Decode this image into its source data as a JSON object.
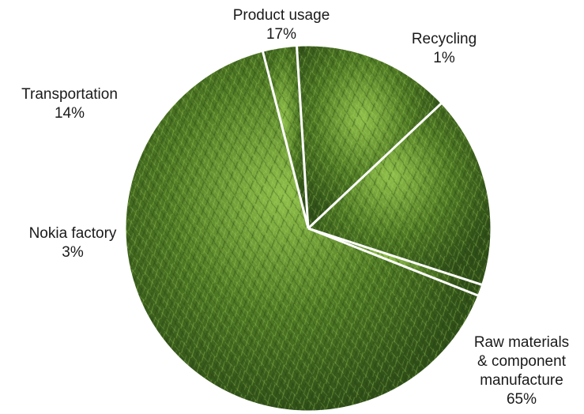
{
  "chart_data": {
    "type": "pie",
    "start_angle_deg": 108,
    "direction": "clockwise",
    "colors": {
      "grass_dark": "#2f4f18",
      "grass_mid": "#4f7a24",
      "grass_light": "#8fbf4a",
      "separator": "#ffffff"
    },
    "slices": [
      {
        "name": "Recycling",
        "value": 1,
        "value_label": "1%",
        "lines": [
          "Recycling"
        ]
      },
      {
        "name": "Raw materials & component manufacture",
        "value": 65,
        "value_label": "65%",
        "lines": [
          "Raw materials",
          "& component",
          "manufacture"
        ]
      },
      {
        "name": "Nokia factory",
        "value": 3,
        "value_label": "3%",
        "lines": [
          "Nokia factory"
        ]
      },
      {
        "name": "Transportation",
        "value": 14,
        "value_label": "14%",
        "lines": [
          "Transportation"
        ]
      },
      {
        "name": "Product usage",
        "value": 17,
        "value_label": "17%",
        "lines": [
          "Product usage"
        ]
      }
    ]
  }
}
